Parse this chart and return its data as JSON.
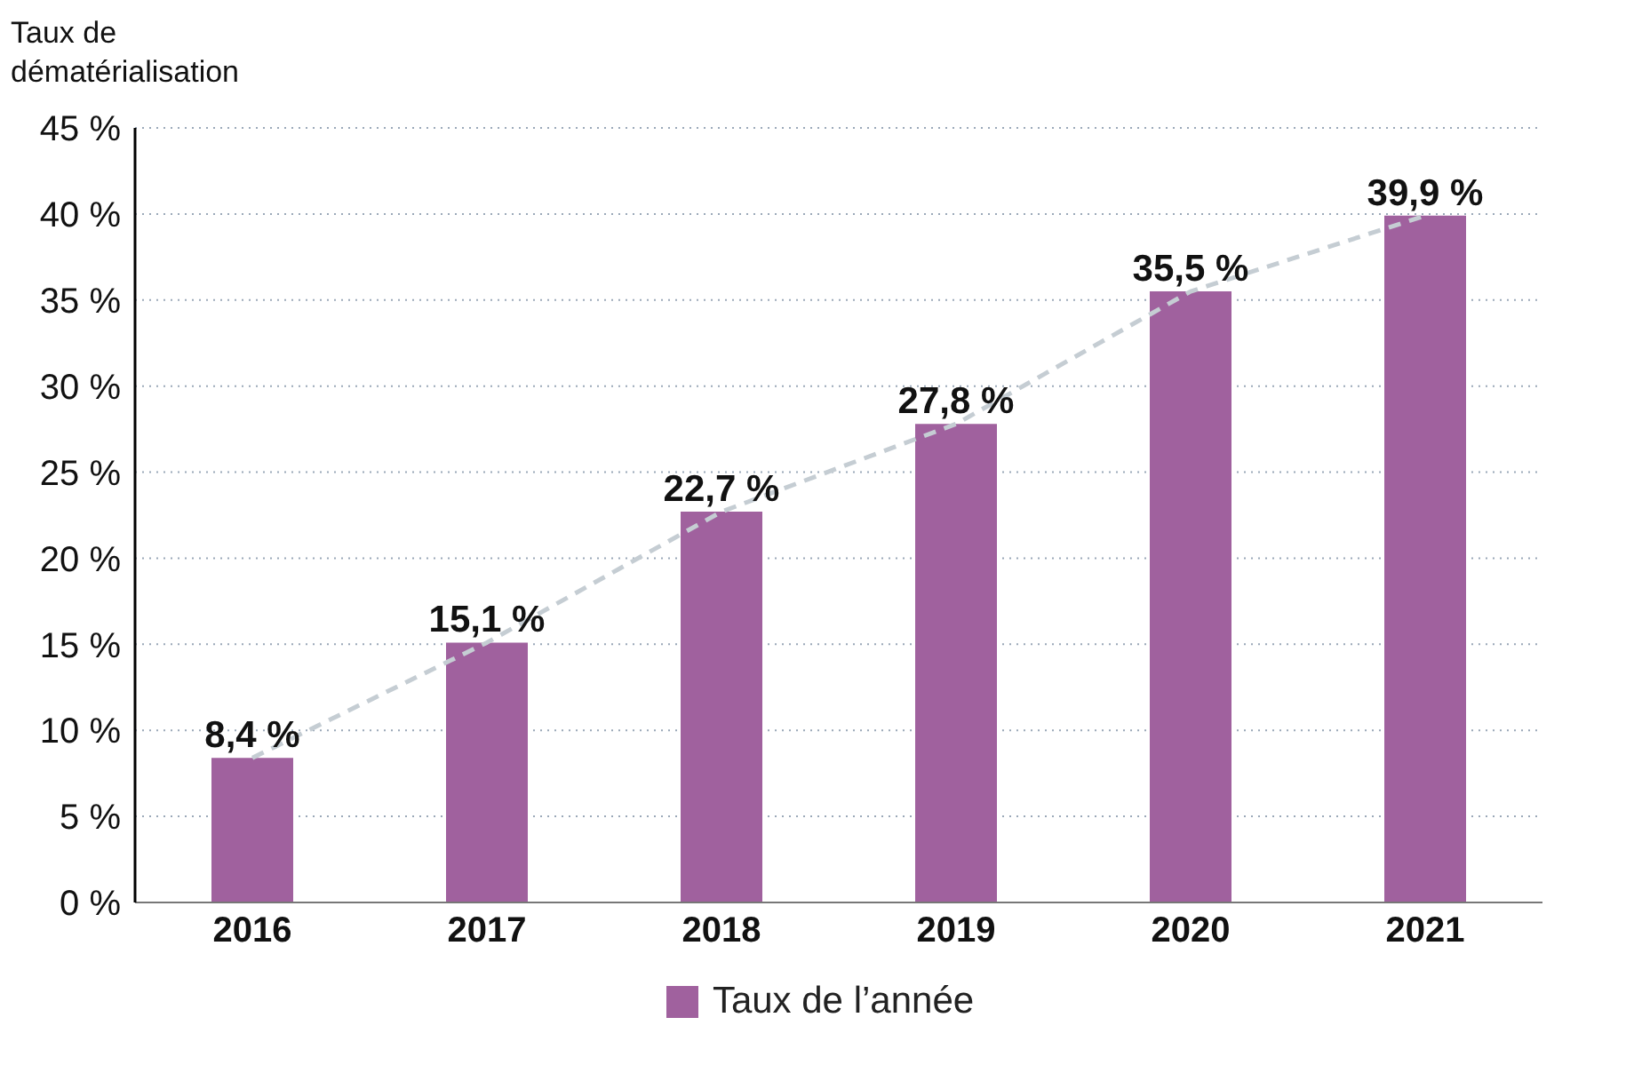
{
  "chart_data": {
    "type": "bar",
    "ylabel": "Taux de dématérialisation",
    "categories": [
      "2016",
      "2017",
      "2018",
      "2019",
      "2020",
      "2021"
    ],
    "series": [
      {
        "name": "Taux de l’année",
        "color": "#a0619e",
        "values": [
          8.4,
          15.1,
          22.7,
          27.8,
          35.5,
          39.9
        ],
        "value_labels": [
          "8,4 %",
          "15,1 %",
          "22,7 %",
          "27,8 %",
          "35,5 %",
          "39,9 %"
        ]
      },
      {
        "type": "line",
        "color": "#c5cdd3",
        "line_style": "dashed",
        "values": [
          8.4,
          15.1,
          22.7,
          27.8,
          35.5,
          39.9
        ]
      }
    ],
    "ylim": [
      0,
      45
    ],
    "yticks": [
      {
        "value": 0,
        "label": "0 %"
      },
      {
        "value": 5,
        "label": "5 %"
      },
      {
        "value": 10,
        "label": "10 %"
      },
      {
        "value": 15,
        "label": "15 %"
      },
      {
        "value": 20,
        "label": "20 %"
      },
      {
        "value": 25,
        "label": "25 %"
      },
      {
        "value": 30,
        "label": "30 %"
      },
      {
        "value": 35,
        "label": "35 %"
      },
      {
        "value": 40,
        "label": "40 %"
      },
      {
        "value": 45,
        "label": "45 %"
      }
    ],
    "grid": "y",
    "legend": "bottom"
  }
}
